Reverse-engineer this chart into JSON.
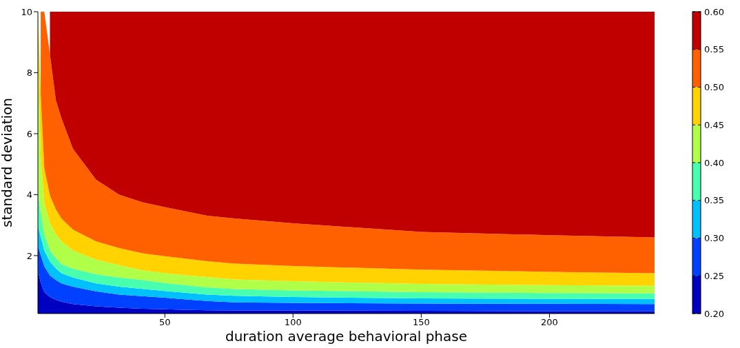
{
  "chart_data": {
    "type": "area",
    "stacked": true,
    "xlabel": "duration average behavioral phase",
    "ylabel": "standard deviation",
    "x": [
      0.5,
      1.6,
      3,
      5.2,
      7.5,
      9.7,
      14.2,
      23.2,
      32.2,
      41.3,
      50,
      66.5,
      77.3,
      100,
      150,
      200,
      241
    ],
    "series": [
      {
        "color": "#0000c0",
        "values": [
          1.5,
          1.13,
          0.8,
          0.64,
          0.55,
          0.49,
          0.41,
          0.34,
          0.29,
          0.26,
          0.24,
          0.21,
          0.2,
          0.2,
          0.19,
          0.18,
          0.18
        ]
      },
      {
        "color": "#0040ff",
        "values": [
          0.82,
          0.89,
          0.85,
          0.71,
          0.65,
          0.6,
          0.57,
          0.49,
          0.43,
          0.41,
          0.38,
          0.3,
          0.27,
          0.25,
          0.24,
          0.24,
          0.23
        ]
      },
      {
        "color": "#00c0ff",
        "values": [
          0.67,
          0.6,
          0.52,
          0.45,
          0.38,
          0.33,
          0.3,
          0.26,
          0.26,
          0.24,
          0.22,
          0.21,
          0.21,
          0.19,
          0.17,
          0.16,
          0.17
        ]
      },
      {
        "color": "#48ffb0",
        "values": [
          1.12,
          0.75,
          0.53,
          0.37,
          0.34,
          0.3,
          0.29,
          0.3,
          0.3,
          0.29,
          0.26,
          0.24,
          0.22,
          0.22,
          0.2,
          0.19,
          0.18
        ]
      },
      {
        "color": "#b0ff48",
        "values": [
          4.89,
          1.87,
          1.04,
          0.9,
          0.78,
          0.75,
          0.6,
          0.48,
          0.41,
          0.32,
          0.32,
          0.34,
          0.32,
          0.3,
          0.27,
          0.26,
          0.25
        ]
      },
      {
        "color": "#ffd200",
        "values": [
          1.0,
          2.06,
          1.13,
          0.9,
          0.82,
          0.75,
          0.68,
          0.6,
          0.56,
          0.56,
          0.56,
          0.52,
          0.52,
          0.5,
          0.47,
          0.44,
          0.41
        ]
      },
      {
        "color": "#ff6000",
        "values": [
          null,
          2.7,
          5.13,
          4.63,
          3.58,
          3.28,
          2.65,
          2.02,
          1.75,
          1.67,
          1.61,
          1.49,
          1.48,
          1.4,
          1.24,
          1.2,
          1.18
        ]
      },
      {
        "color": "#c00000",
        "values": [
          null,
          null,
          null,
          1.4,
          2.9,
          3.5,
          4.5,
          5.51,
          6.0,
          6.25,
          6.41,
          6.69,
          6.78,
          6.94,
          7.22,
          7.33,
          7.4
        ]
      }
    ],
    "xlim": [
      0.5,
      241
    ],
    "xticks": [
      50,
      100,
      150,
      200
    ],
    "ylim": [
      0.1,
      10
    ],
    "yticks": [
      2,
      4,
      6,
      8,
      10
    ],
    "clim": [
      0.2,
      0.6
    ],
    "cticks": [
      {
        "value": 0.2,
        "label": "0.20"
      },
      {
        "value": 0.25,
        "label": "0.25"
      },
      {
        "value": 0.3,
        "label": "0.30"
      },
      {
        "value": 0.35,
        "label": "0.35"
      },
      {
        "value": 0.4,
        "label": "0.40"
      },
      {
        "value": 0.45,
        "label": "0.45"
      },
      {
        "value": 0.5,
        "label": "0.50"
      },
      {
        "value": 0.55,
        "label": "0.55"
      },
      {
        "value": 0.6,
        "label": "0.60"
      }
    ],
    "grid": false,
    "legend": false
  }
}
